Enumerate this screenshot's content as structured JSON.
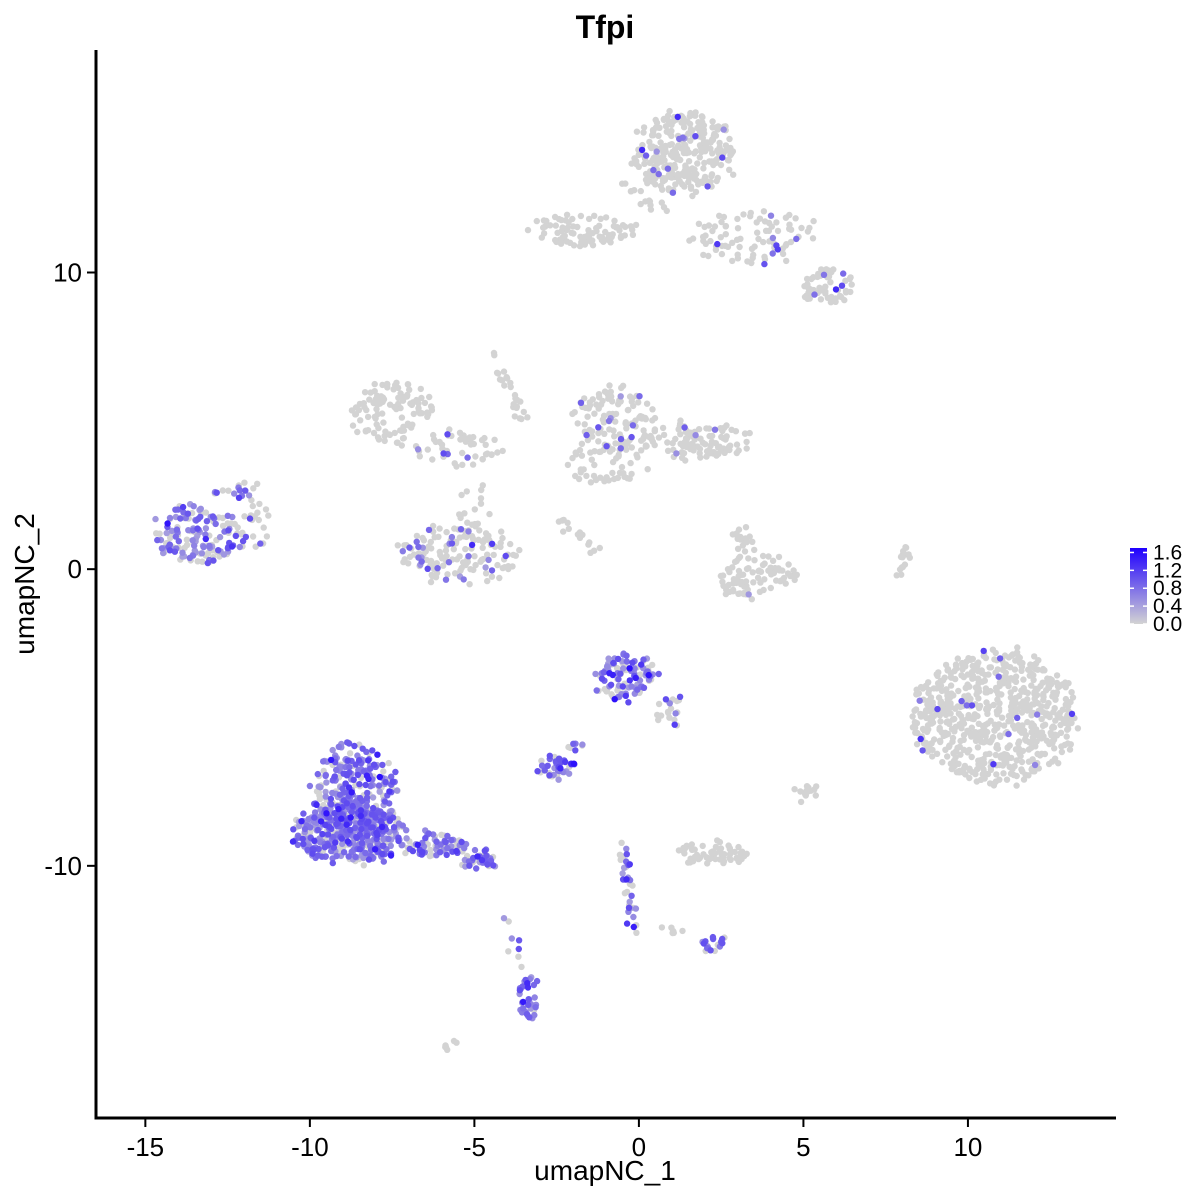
{
  "chart_data": {
    "type": "scatter",
    "title": "Tfpi",
    "xlabel": "umapNC_1",
    "ylabel": "umapNC_2",
    "xlim": [
      -16.5,
      14.5
    ],
    "ylim": [
      -18.5,
      17.5
    ],
    "xticks": [
      -15,
      -10,
      -5,
      0,
      5,
      10
    ],
    "yticks": [
      -10,
      0,
      10
    ],
    "grid": false,
    "legend_placement": "right",
    "color_scale": {
      "low": "#d3d3d3",
      "high": "#1f00ff",
      "min": 0,
      "max": 1.7,
      "ticks": [
        "1.6",
        "1.2",
        "0.8",
        "0.4",
        "0.0"
      ]
    },
    "clusters": [
      {
        "cx": 1.4,
        "cy": 14.0,
        "rx": 1.5,
        "ry": 1.4,
        "n": 300,
        "expr": 0.03
      },
      {
        "cx": 3.5,
        "cy": 11.2,
        "rx": 2.0,
        "ry": 0.9,
        "n": 90,
        "expr": 0.05
      },
      {
        "cx": 5.7,
        "cy": 9.5,
        "rx": 0.7,
        "ry": 0.6,
        "n": 60,
        "expr": 0.08
      },
      {
        "cx": -1.8,
        "cy": 11.4,
        "rx": 1.8,
        "ry": 0.5,
        "n": 80,
        "expr": 0.0
      },
      {
        "cx": -7.5,
        "cy": 5.3,
        "rx": 1.3,
        "ry": 1.0,
        "n": 110,
        "expr": 0.0
      },
      {
        "cx": -5.5,
        "cy": 4.0,
        "rx": 1.3,
        "ry": 0.6,
        "n": 50,
        "expr": 0.02
      },
      {
        "cx": -0.8,
        "cy": 5.0,
        "rx": 1.2,
        "ry": 1.2,
        "n": 120,
        "expr": 0.06
      },
      {
        "cx": 1.8,
        "cy": 4.3,
        "rx": 1.8,
        "ry": 0.6,
        "n": 110,
        "expr": 0.05
      },
      {
        "cx": -1.0,
        "cy": 3.5,
        "rx": 1.3,
        "ry": 0.6,
        "n": 40,
        "expr": 0.02
      },
      {
        "cx": -13.4,
        "cy": 1.2,
        "rx": 1.3,
        "ry": 1.0,
        "n": 150,
        "expr": 0.5
      },
      {
        "cx": -11.8,
        "cy": 1.5,
        "rx": 0.6,
        "ry": 0.9,
        "n": 25,
        "expr": 0.15
      },
      {
        "cx": -5.5,
        "cy": 0.5,
        "rx": 1.8,
        "ry": 1.0,
        "n": 140,
        "expr": 0.15
      },
      {
        "cx": -5.0,
        "cy": 1.8,
        "rx": 0.6,
        "ry": 1.2,
        "n": 25,
        "expr": 0.0
      },
      {
        "cx": 3.6,
        "cy": -0.3,
        "rx": 1.2,
        "ry": 0.7,
        "n": 80,
        "expr": 0.02
      },
      {
        "cx": 3.1,
        "cy": 0.9,
        "rx": 0.4,
        "ry": 0.6,
        "n": 20,
        "expr": 0.05
      },
      {
        "cx": 10.8,
        "cy": -5.0,
        "rx": 2.5,
        "ry": 2.3,
        "n": 650,
        "expr": 0.01
      },
      {
        "cx": 9.2,
        "cy": -4.5,
        "rx": 0.5,
        "ry": 0.6,
        "n": 20,
        "expr": 0.0
      },
      {
        "cx": -0.4,
        "cy": -3.6,
        "rx": 0.9,
        "ry": 0.8,
        "n": 110,
        "expr": 0.55
      },
      {
        "cx": 0.9,
        "cy": -4.8,
        "rx": 0.4,
        "ry": 0.6,
        "n": 20,
        "expr": 0.4
      },
      {
        "cx": -8.6,
        "cy": -7.6,
        "rx": 1.2,
        "ry": 1.8,
        "n": 300,
        "expr": 0.6
      },
      {
        "cx": -8.8,
        "cy": -8.9,
        "rx": 1.7,
        "ry": 1.0,
        "n": 380,
        "expr": 0.6
      },
      {
        "cx": -6.2,
        "cy": -9.3,
        "rx": 1.0,
        "ry": 0.4,
        "n": 70,
        "expr": 0.55
      },
      {
        "cx": -4.9,
        "cy": -9.8,
        "rx": 0.6,
        "ry": 0.3,
        "n": 35,
        "expr": 0.5
      },
      {
        "cx": -2.5,
        "cy": -6.7,
        "rx": 0.6,
        "ry": 0.4,
        "n": 40,
        "expr": 0.6
      },
      {
        "cx": 2.2,
        "cy": -9.6,
        "rx": 1.1,
        "ry": 0.4,
        "n": 60,
        "expr": 0.0
      },
      {
        "cx": -3.4,
        "cy": -14.5,
        "rx": 0.3,
        "ry": 0.8,
        "n": 35,
        "expr": 0.75
      },
      {
        "cx": 2.2,
        "cy": -12.6,
        "rx": 0.4,
        "ry": 0.3,
        "n": 18,
        "expr": 0.6
      },
      {
        "cx": 5.0,
        "cy": -7.5,
        "rx": 0.4,
        "ry": 0.3,
        "n": 15,
        "expr": 0.0
      }
    ],
    "trails": [
      {
        "from": [
          -0.5,
          -9.3
        ],
        "to": [
          -0.2,
          -12.2
        ],
        "n": 35,
        "expr": 0.55
      },
      {
        "from": [
          -1.8,
          -5.9
        ],
        "to": [
          -2.4,
          -6.5
        ],
        "n": 12,
        "expr": 0.6
      },
      {
        "from": [
          -4.5,
          7.4
        ],
        "to": [
          -3.5,
          5.0
        ],
        "n": 25,
        "expr": 0.0
      },
      {
        "from": [
          -2.5,
          1.7
        ],
        "to": [
          -1.2,
          0.6
        ],
        "n": 15,
        "expr": 0.0
      },
      {
        "from": [
          8.2,
          0.9
        ],
        "to": [
          7.8,
          -0.3
        ],
        "n": 15,
        "expr": 0.0
      },
      {
        "from": [
          -13.0,
          2.4
        ],
        "to": [
          -11.4,
          2.8
        ],
        "n": 18,
        "expr": 0.3
      },
      {
        "from": [
          -4.1,
          -11.6
        ],
        "to": [
          -3.5,
          -13.5
        ],
        "n": 8,
        "expr": 0.55
      },
      {
        "from": [
          -6.0,
          -16.2
        ],
        "to": [
          -5.5,
          -16.0
        ],
        "n": 6,
        "expr": 0.0
      },
      {
        "from": [
          0.6,
          -12.1
        ],
        "to": [
          1.6,
          -12.3
        ],
        "n": 6,
        "expr": 0.0
      },
      {
        "from": [
          -0.5,
          13.0
        ],
        "to": [
          0.9,
          12.0
        ],
        "n": 15,
        "expr": 0.0
      },
      {
        "from": [
          -2.7,
          11.3
        ],
        "to": [
          -0.6,
          11.0
        ],
        "n": 12,
        "expr": 0.0
      }
    ]
  }
}
